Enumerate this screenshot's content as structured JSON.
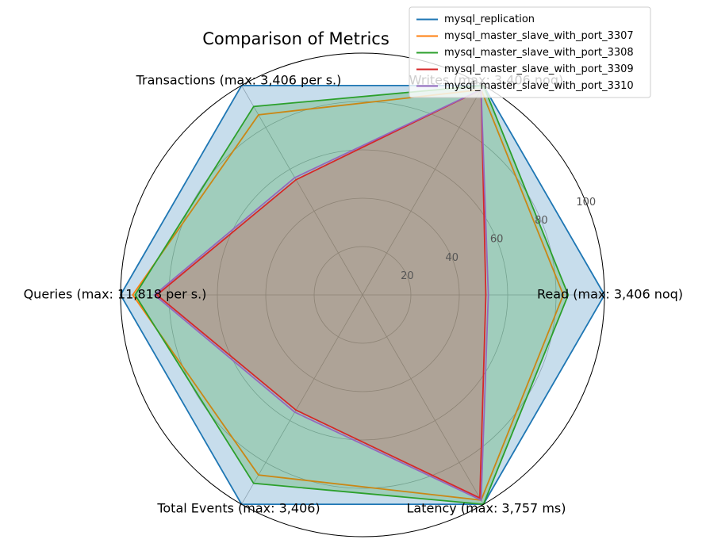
{
  "chart_data": {
    "type": "radar",
    "title": "Comparison of Metrics",
    "axes": [
      "Read (max: 3,406 noq)",
      "Writes (max: 3,406 noq)",
      "Transactions (max: 3,406 per s.)",
      "Queries (max: 11,818 per s.)",
      "Total Events (max: 3,406)",
      "Latency (max: 3,757 ms)"
    ],
    "rlim": [
      0,
      100
    ],
    "rticks": [
      "20",
      "40",
      "60",
      "80",
      "100"
    ],
    "grid": true,
    "legend": "top-right",
    "series": [
      {
        "name": "mysql_replication",
        "color": "#1f77b4",
        "fill": true,
        "values": [
          100,
          100,
          100,
          100,
          100,
          100
        ]
      },
      {
        "name": "mysql_master_slave_with_port_3307",
        "color": "#ff7f0e",
        "fill": false,
        "values": [
          83,
          98,
          86,
          95,
          86,
          98
        ]
      },
      {
        "name": "mysql_master_slave_with_port_3308",
        "color": "#2ca02c",
        "fill": true,
        "values": [
          85,
          100,
          90,
          94,
          90,
          100
        ]
      },
      {
        "name": "mysql_master_slave_with_port_3309",
        "color": "#d62728",
        "fill": true,
        "values": [
          51,
          98,
          55,
          85,
          55,
          97
        ]
      },
      {
        "name": "mysql_master_slave_with_port_3310",
        "color": "#9467bd",
        "fill": false,
        "values": [
          52,
          98,
          56,
          86,
          56,
          98
        ]
      }
    ]
  }
}
